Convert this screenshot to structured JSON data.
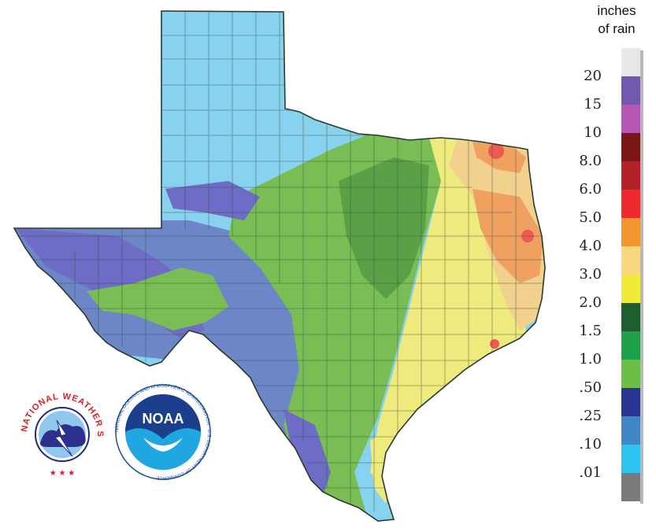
{
  "legend": {
    "title_line1": "inches",
    "title_line2": "of rain",
    "labels": [
      "20",
      "15",
      "10",
      "8.0",
      "6.0",
      "5.0",
      "4.0",
      "3.0",
      "2.0",
      "1.5",
      "1.0",
      ".50",
      ".25",
      ".10",
      ".01"
    ],
    "colors": [
      "#e8e8e8",
      "#7358b0",
      "#b856b6",
      "#7a1616",
      "#b42229",
      "#ee2a2e",
      "#f59731",
      "#f9d77e",
      "#f2ea37",
      "#1e5f2e",
      "#1fa149",
      "#6cbf46",
      "#2a3591",
      "#3f86c6",
      "#2cc4f0",
      "#7a7a7a"
    ]
  },
  "map": {
    "region": "Texas",
    "colors": {
      "light_blue": "#87d2ee",
      "mid_blue": "#6c86c8",
      "purple_blue": "#6e6cc6",
      "green": "#79bd54",
      "dark_green": "#5aa046",
      "yellow": "#efea7e",
      "tan": "#f2d08e",
      "orange": "#f0a060",
      "red": "#ec5a52",
      "white": "#ffffff",
      "border": "#2b3b2b"
    }
  },
  "logos": {
    "nws_text": "NATIONAL WEATHER SERVICE",
    "noaa_text": "NOAA",
    "noaa_ring_text": "NATIONAL OCEANIC AND ATMOSPHERIC ADMINISTRATION · U.S. DEPARTMENT OF COMMERCE"
  }
}
